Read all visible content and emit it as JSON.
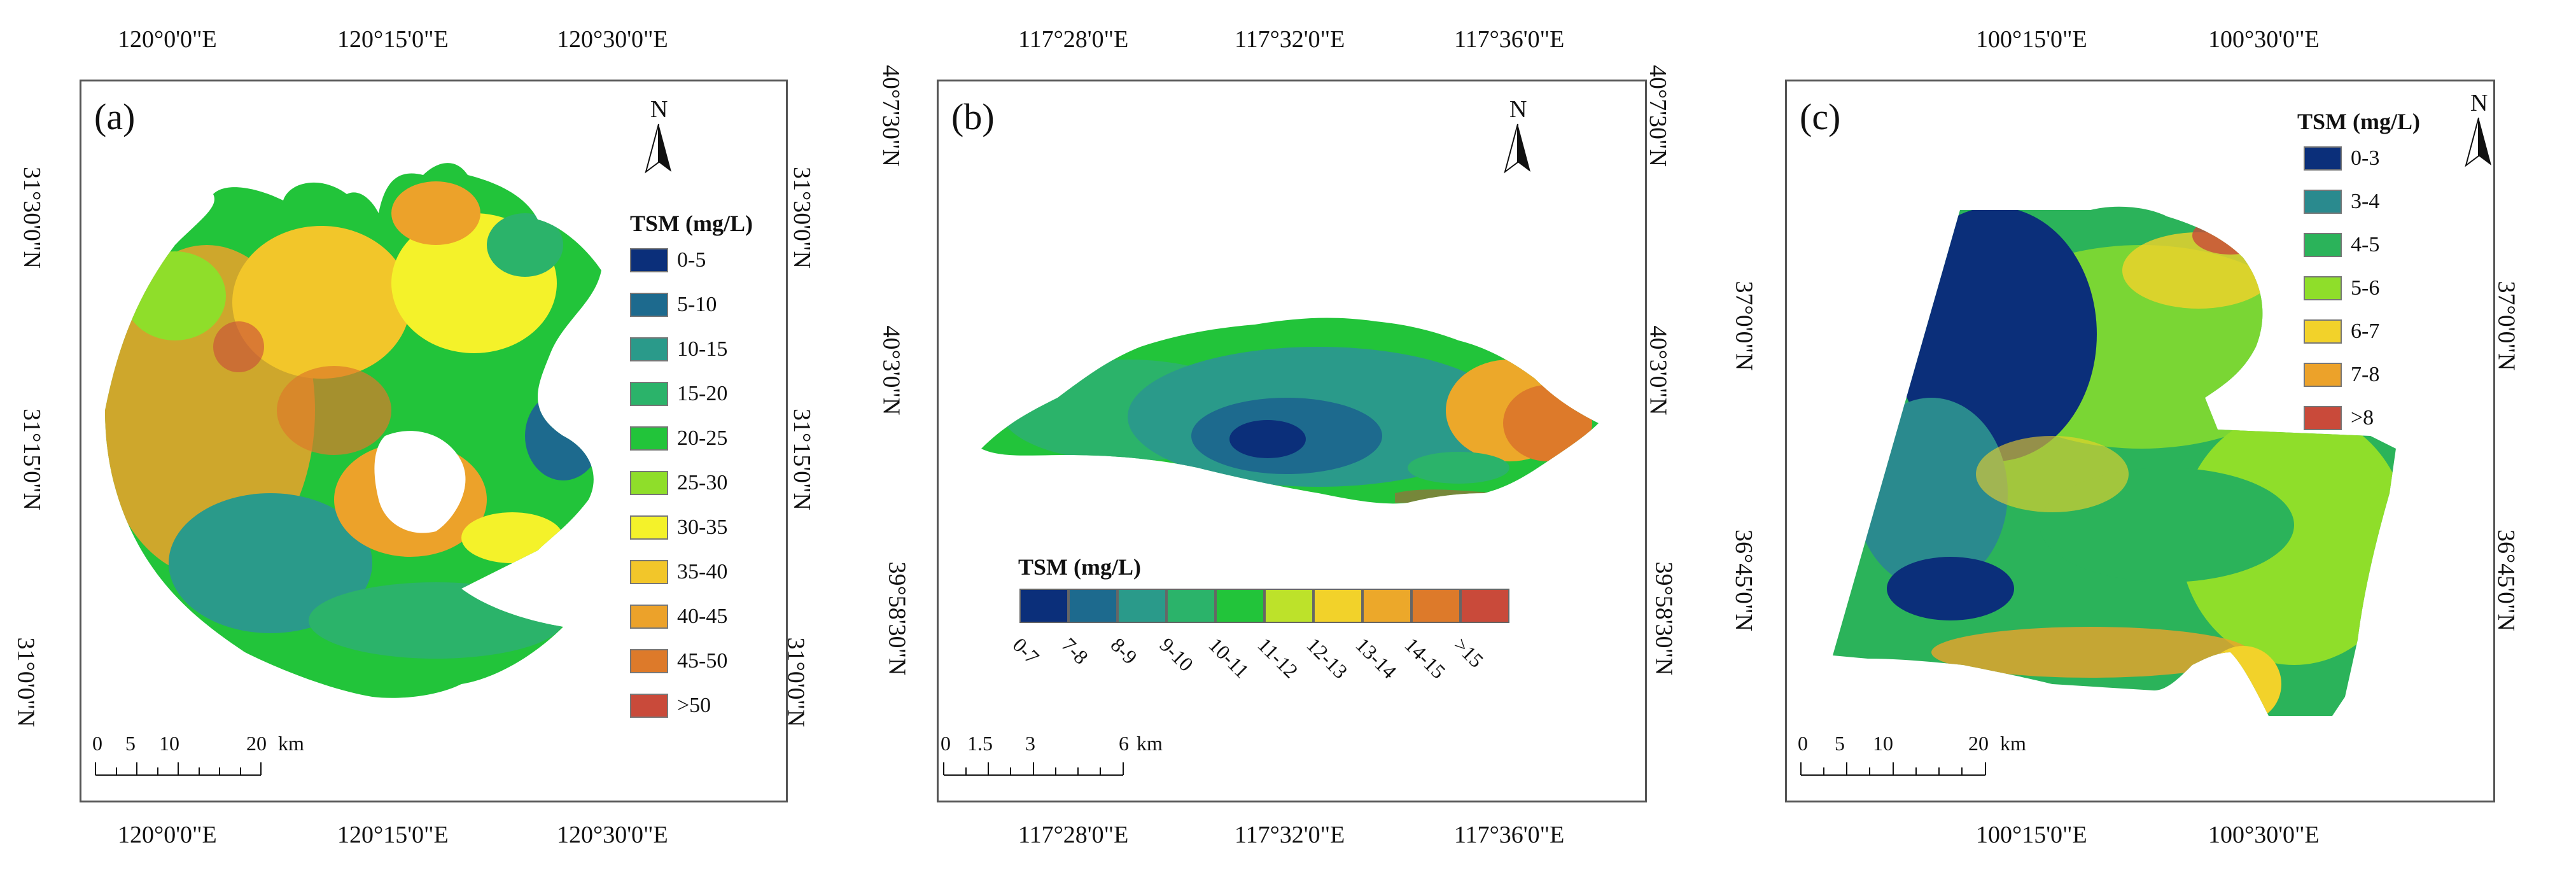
{
  "panels": [
    {
      "label": "(a)",
      "top_coords": [
        "120°0'0\"E",
        "120°15'0\"E",
        "120°30'0\"E"
      ],
      "bottom_coords": [
        "120°0'0\"E",
        "120°15'0\"E",
        "120°30'0\"E"
      ],
      "left_coords": [
        "31°30'0\"N",
        "31°15'0\"N",
        "31°0'0\"N"
      ],
      "right_coords": [
        "31°30'0\"N",
        "31°15'0\"N",
        "31°0'0\"N"
      ],
      "north": "N",
      "legend_title": "TSM (mg/L)",
      "legend": [
        {
          "label": "0-5",
          "color": "#0b2f7a"
        },
        {
          "label": "5-10",
          "color": "#1d6a8e"
        },
        {
          "label": "10-15",
          "color": "#2a9a8a"
        },
        {
          "label": "15-20",
          "color": "#2bb36a"
        },
        {
          "label": "20-25",
          "color": "#22c43a"
        },
        {
          "label": "25-30",
          "color": "#8fde2a"
        },
        {
          "label": "30-35",
          "color": "#f4f22a"
        },
        {
          "label": "35-40",
          "color": "#f2c62a"
        },
        {
          "label": "40-45",
          "color": "#eca22a"
        },
        {
          "label": "45-50",
          "color": "#dd7a2a"
        },
        {
          "label": ">50",
          "color": "#c94a3a"
        }
      ],
      "scale": {
        "ticks": [
          "0",
          "5",
          "10",
          "20"
        ],
        "unit": "km"
      }
    },
    {
      "label": "(b)",
      "top_coords": [
        "117°28'0\"E",
        "117°32'0\"E",
        "117°36'0\"E"
      ],
      "bottom_coords": [
        "117°28'0\"E",
        "117°32'0\"E",
        "117°36'0\"E"
      ],
      "left_coords": [
        "40°7'30\"N",
        "40°3'0\"N",
        "39°58'30\"N"
      ],
      "right_coords": [
        "40°7'30\"N",
        "40°3'0\"N",
        "39°58'30\"N"
      ],
      "north": "N",
      "legend_title": "TSM (mg/L)",
      "legend": [
        {
          "label": "0-7",
          "color": "#0b2f7a"
        },
        {
          "label": "7-8",
          "color": "#1d6a8e"
        },
        {
          "label": "8-9",
          "color": "#2a9a8a"
        },
        {
          "label": "9-10",
          "color": "#2bb36a"
        },
        {
          "label": "10-11",
          "color": "#22c43a"
        },
        {
          "label": "11-12",
          "color": "#bde22a"
        },
        {
          "label": "12-13",
          "color": "#f2d22a"
        },
        {
          "label": "13-14",
          "color": "#eca82a"
        },
        {
          "label": "14-15",
          "color": "#dd7a2a"
        },
        {
          "label": ">15",
          "color": "#c94a3a"
        }
      ],
      "scale": {
        "ticks": [
          "0",
          "1.5",
          "3",
          "6"
        ],
        "unit": "km"
      }
    },
    {
      "label": "(c)",
      "top_coords": [
        "100°15'0\"E",
        "100°30'0\"E"
      ],
      "bottom_coords": [
        "100°15'0\"E",
        "100°30'0\"E"
      ],
      "left_coords": [
        "37°0'0\"N",
        "36°45'0\"N"
      ],
      "right_coords": [
        "37°0'0\"N",
        "36°45'0\"N"
      ],
      "north": "N",
      "legend_title": "TSM (mg/L)",
      "legend": [
        {
          "label": "0-3",
          "color": "#0b2f7a"
        },
        {
          "label": "3-4",
          "color": "#2a8a8e"
        },
        {
          "label": "4-5",
          "color": "#2bb35a"
        },
        {
          "label": "5-6",
          "color": "#8fde2a"
        },
        {
          "label": "6-7",
          "color": "#f2d22a"
        },
        {
          "label": "7-8",
          "color": "#eca22a"
        },
        {
          "label": ">8",
          "color": "#c94a3a"
        }
      ],
      "scale": {
        "ticks": [
          "0",
          "5",
          "10",
          "20"
        ],
        "unit": "km"
      }
    }
  ]
}
